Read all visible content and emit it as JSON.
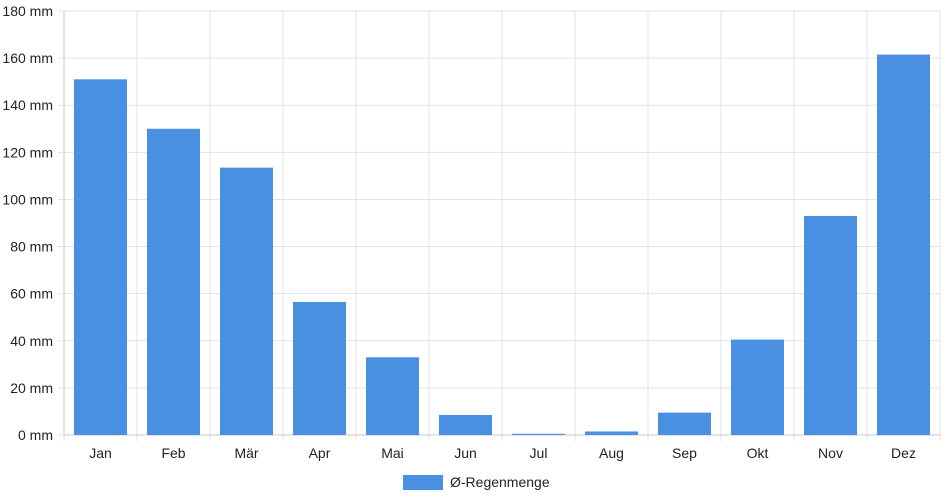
{
  "chart_data": {
    "type": "bar",
    "categories": [
      "Jan",
      "Feb",
      "Mär",
      "Apr",
      "Mai",
      "Jun",
      "Jul",
      "Aug",
      "Sep",
      "Okt",
      "Nov",
      "Dez"
    ],
    "series": [
      {
        "name": "Ø-Regenmenge",
        "values": [
          151,
          130,
          113.5,
          56.5,
          33,
          8.5,
          0.5,
          1.5,
          9.5,
          40.5,
          93,
          161.5
        ],
        "color": "#4a90e2"
      }
    ],
    "y_unit": "mm",
    "ylim": [
      0,
      180
    ],
    "y_ticks": [
      "0 mm",
      "20 mm",
      "40 mm",
      "60 mm",
      "80 mm",
      "100 mm",
      "120 mm",
      "140 mm",
      "160 mm",
      "180 mm"
    ],
    "grid": true,
    "legend": {
      "position": "bottom",
      "label": "Ø-Regenmenge"
    }
  }
}
